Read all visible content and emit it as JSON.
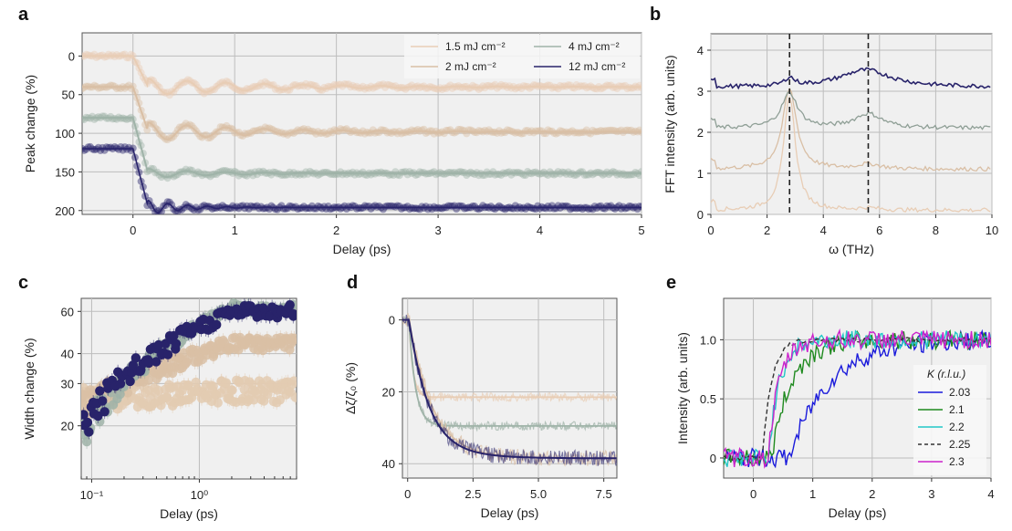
{
  "chart_data": [
    {
      "panel": "a",
      "type": "line",
      "xlabel": "Delay (ps)",
      "ylabel": "Peak change (%)",
      "xlim": [
        -0.5,
        5
      ],
      "ylim": [
        -30,
        205
      ],
      "y_inverted": true,
      "xticks": [
        0,
        1,
        2,
        3,
        4,
        5
      ],
      "yticks": [
        0,
        50,
        100,
        150,
        200
      ],
      "grid": true,
      "legend": "top-right",
      "series": [
        {
          "name": "1.5 mJ cm⁻²",
          "color": "#e8cdb5",
          "offset": 0,
          "drop": 40,
          "oscillation_amp": 12,
          "freq_thz": 2.8,
          "decay_ps": 1.2
        },
        {
          "name": "2 mJ cm⁻²",
          "color": "#d9bfa5",
          "offset": 40,
          "drop": 58,
          "oscillation_amp": 14,
          "freq_thz": 2.8,
          "decay_ps": 1.0
        },
        {
          "name": "4 mJ cm⁻²",
          "color": "#9fb3a8",
          "offset": 80,
          "drop": 72,
          "oscillation_amp": 8,
          "freq_thz": 2.8,
          "decay_ps": 0.6
        },
        {
          "name": "12 mJ cm⁻²",
          "color": "#28236a",
          "offset": 120,
          "drop": 76,
          "oscillation_amp": 14,
          "freq_thz": 5.5,
          "decay_ps": 0.35
        }
      ]
    },
    {
      "panel": "b",
      "type": "line",
      "xlabel": "ω (THz)",
      "ylabel": "FFT intensity (arb. units)",
      "xlim": [
        0,
        10
      ],
      "ylim": [
        0,
        4.4
      ],
      "xticks": [
        0,
        2,
        4,
        6,
        8,
        10
      ],
      "yticks": [
        0,
        1,
        2,
        3,
        4
      ],
      "grid": true,
      "vlines_dashed": [
        2.8,
        5.6
      ],
      "series": [
        {
          "name": "1.5 mJ cm⁻²",
          "color": "#e8cdb5",
          "baseline": 0.1,
          "peaks": [
            {
              "x": 2.8,
              "h": 2.8,
              "w": 0.25
            },
            {
              "x": 5.6,
              "h": 0.05,
              "w": 0.4
            }
          ]
        },
        {
          "name": "2 mJ cm⁻²",
          "color": "#d9bfa5",
          "baseline": 1.1,
          "peaks": [
            {
              "x": 2.8,
              "h": 1.95,
              "w": 0.3
            },
            {
              "x": 5.6,
              "h": 0.12,
              "w": 0.5
            }
          ]
        },
        {
          "name": "4 mJ cm⁻²",
          "color": "#8f9f96",
          "baseline": 2.1,
          "peaks": [
            {
              "x": 2.8,
              "h": 0.85,
              "w": 0.35
            },
            {
              "x": 5.6,
              "h": 0.35,
              "w": 0.6
            }
          ]
        },
        {
          "name": "12 mJ cm⁻²",
          "color": "#28236a",
          "baseline": 3.1,
          "peaks": [
            {
              "x": 2.8,
              "h": 0.2,
              "w": 0.2
            },
            {
              "x": 5.5,
              "h": 0.42,
              "w": 1.1
            }
          ]
        }
      ]
    },
    {
      "panel": "c",
      "type": "scatter",
      "xlabel": "Delay (ps)",
      "ylabel": "Width change (%)",
      "xscale": "log",
      "yscale": "log",
      "xlim": [
        0.08,
        8
      ],
      "ylim": [
        12,
        68
      ],
      "xticks": [
        "10⁻¹",
        "10⁰"
      ],
      "xtick_values": [
        0.1,
        1
      ],
      "yticks": [
        20,
        30,
        40,
        60
      ],
      "grid": true,
      "series": [
        {
          "name": "1.5 mJ cm⁻²",
          "color": "#e3cbb2",
          "start": 26,
          "end": 28
        },
        {
          "name": "2 mJ cm⁻²",
          "color": "#d9bfa5",
          "start": 24,
          "end": 44
        },
        {
          "name": "4 mJ cm⁻²",
          "color": "#9fb3a8",
          "start": 18,
          "end": 62
        },
        {
          "name": "12 mJ cm⁻²",
          "color": "#28236a",
          "start": 20,
          "end": 60
        }
      ]
    },
    {
      "panel": "d",
      "type": "line",
      "xlabel": "Delay (ps)",
      "ylabel": "Δζ/ζ₀ (%)",
      "xlim": [
        -0.2,
        8
      ],
      "ylim": [
        -6,
        44
      ],
      "y_inverted": true,
      "xticks": [
        0,
        2.5,
        5.0,
        7.5
      ],
      "xtick_labels": [
        "0",
        "2.5",
        "5.0",
        "7.5"
      ],
      "yticks": [
        0,
        20,
        40
      ],
      "grid": true,
      "series": [
        {
          "name": "1.5 mJ cm⁻²",
          "color": "#e8cdb5",
          "plateau": 21.5,
          "tau_ps": 0.15
        },
        {
          "name": "4 mJ cm⁻²",
          "color": "#9fb3a8",
          "plateau": 29.5,
          "tau_ps": 0.25
        },
        {
          "name": "2 mJ cm⁻²",
          "color": "#d9bfa5",
          "plateau": 38.5,
          "tau_ps": 0.7
        },
        {
          "name": "12 mJ cm⁻²",
          "color": "#28236a",
          "plateau": 38.5,
          "tau_ps": 0.6
        }
      ]
    },
    {
      "panel": "e",
      "type": "line",
      "xlabel": "Delay (ps)",
      "ylabel": "Intensity (arb. units)",
      "xlim": [
        -0.5,
        4
      ],
      "ylim": [
        -0.17,
        1.35
      ],
      "xticks": [
        0,
        1,
        2,
        3,
        4
      ],
      "yticks": [
        0,
        0.5,
        1.0
      ],
      "ytick_labels": [
        "0",
        "0.5",
        "1.0"
      ],
      "grid": true,
      "legend": "bottom-right",
      "legend_title": "K (r.l.u.)",
      "series": [
        {
          "name": "2.03",
          "color": "#1a1adb",
          "dash": false,
          "onset_ps": 0.6,
          "rise_ps": 2.0
        },
        {
          "name": "2.1",
          "color": "#1f8a1f",
          "dash": false,
          "onset_ps": 0.3,
          "rise_ps": 1.0
        },
        {
          "name": "2.2",
          "color": "#22c7c7",
          "dash": false,
          "onset_ps": 0.25,
          "rise_ps": 0.55
        },
        {
          "name": "2.25",
          "color": "#333333",
          "dash": true,
          "onset_ps": 0.15,
          "rise_ps": 0.45
        },
        {
          "name": "2.3",
          "color": "#cc22cc",
          "dash": false,
          "onset_ps": 0.25,
          "rise_ps": 0.55
        }
      ]
    }
  ],
  "labels": {
    "a": "a",
    "b": "b",
    "c": "c",
    "d": "d",
    "e": "e"
  }
}
